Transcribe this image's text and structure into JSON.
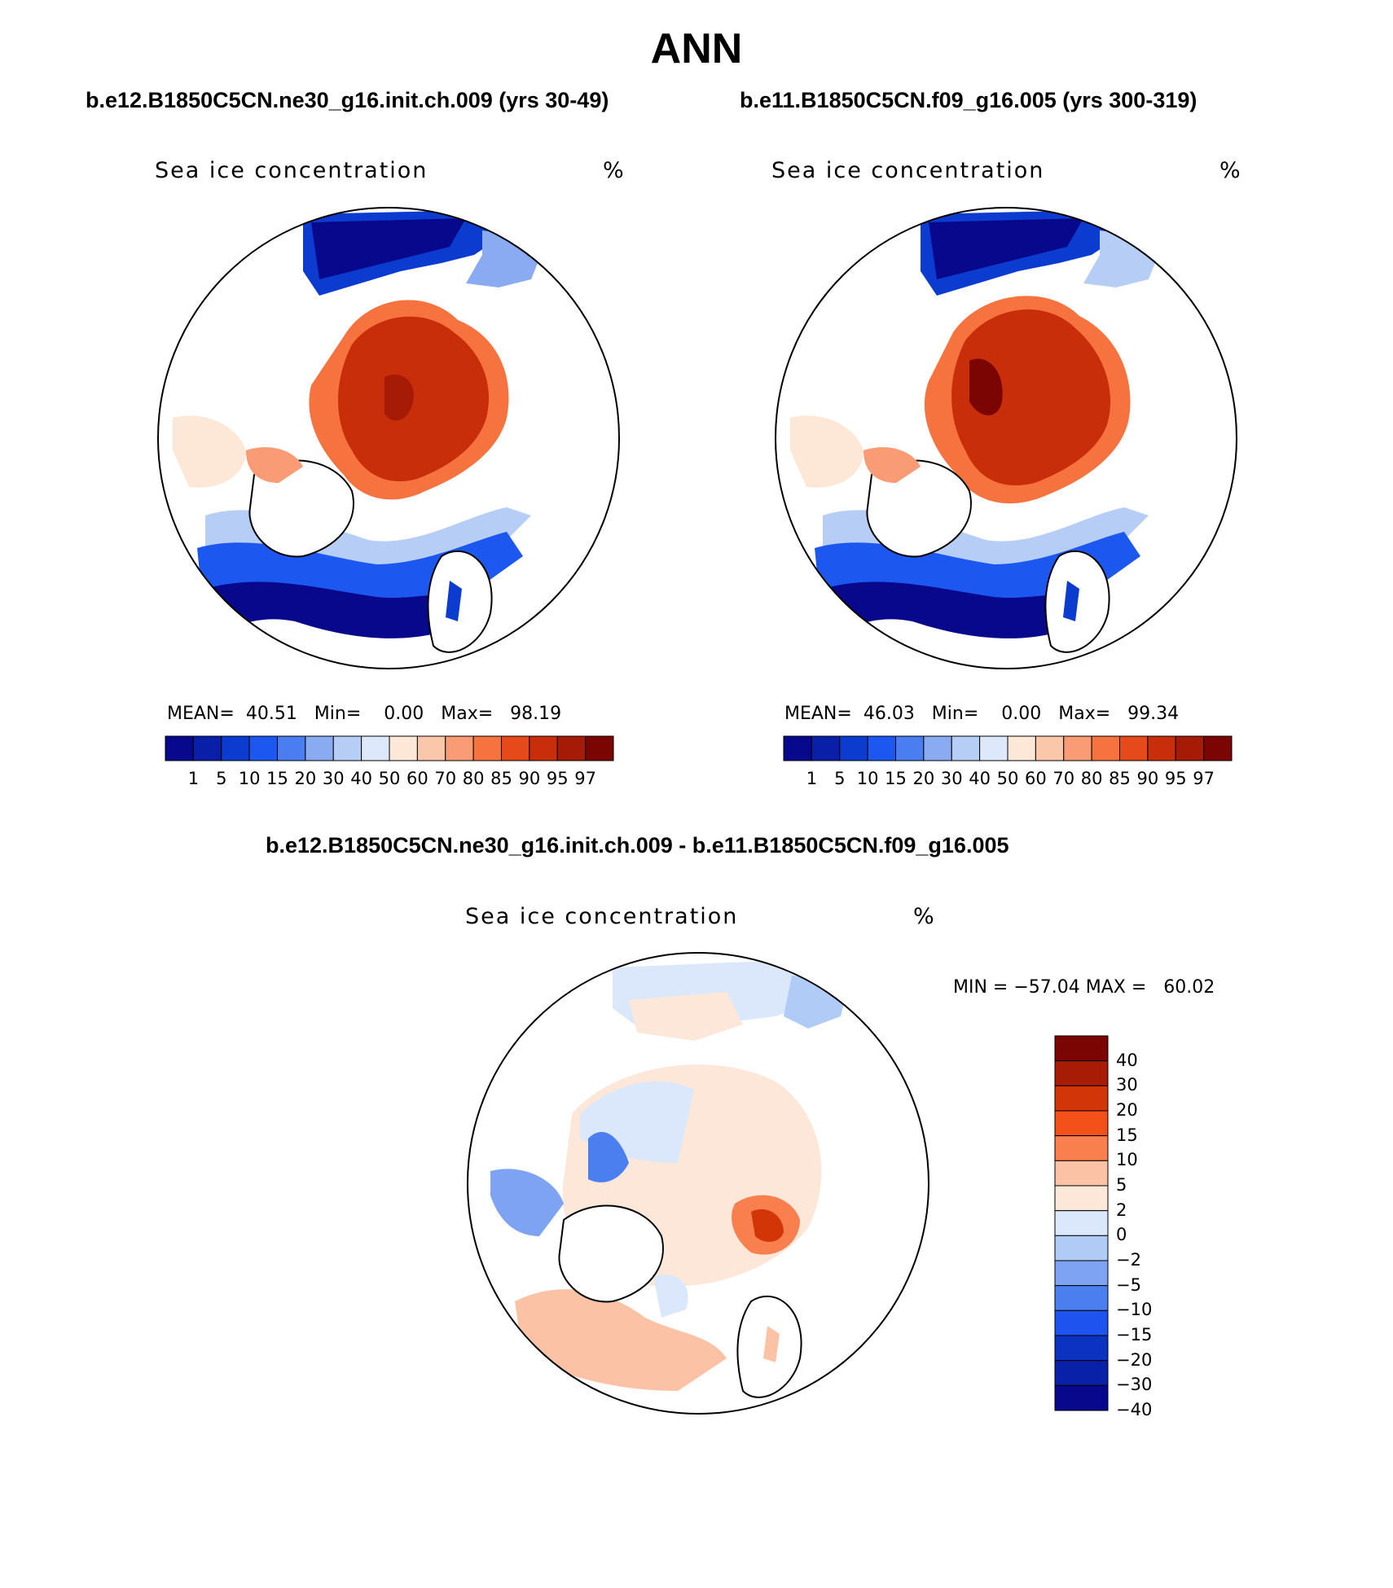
{
  "title": "ANN",
  "panels": [
    {
      "case": "b.e12.B1850C5CN.ne30_g16.init.ch.009 (yrs 30-49)",
      "variable": "Sea ice concentration",
      "units": "%",
      "stats": {
        "mean_label": "MEAN=",
        "mean": "40.51",
        "min_label": "Min=",
        "min": "0.00",
        "max_label": "Max=",
        "max": "98.19"
      }
    },
    {
      "case": "b.e11.B1850C5CN.f09_g16.005 (yrs 300-319)",
      "variable": "Sea ice concentration",
      "units": "%",
      "stats": {
        "mean_label": "MEAN=",
        "mean": "46.03",
        "min_label": "Min=",
        "min": "0.00",
        "max_label": "Max=",
        "max": "99.34"
      }
    }
  ],
  "diff_panel": {
    "title": "b.e12.B1850C5CN.ne30_g16.init.ch.009 - b.e11.B1850C5CN.f09_g16.005",
    "variable": "Sea ice concentration",
    "units": "%",
    "minmax": "MIN = −57.04 MAX =   60.02"
  },
  "colorbar_levels": [
    "1",
    "5",
    "10",
    "15",
    "20",
    "30",
    "40",
    "50",
    "60",
    "70",
    "80",
    "85",
    "90",
    "95",
    "97"
  ],
  "colorbar_colors": [
    "#08088c",
    "#0a1fa8",
    "#0b3ccf",
    "#1c58f0",
    "#4a7ef0",
    "#8aaaf2",
    "#b6cdf6",
    "#dde9fb",
    "#fde8d8",
    "#fbc7aa",
    "#f99b74",
    "#f6733f",
    "#e74a1a",
    "#c82e0a",
    "#a51b06",
    "#7a0503"
  ],
  "diff_levels": [
    "40",
    "30",
    "20",
    "15",
    "10",
    "5",
    "2",
    "0",
    "−2",
    "−5",
    "−10",
    "−15",
    "−20",
    "−30",
    "−40"
  ],
  "diff_colors": [
    "#7a0503",
    "#a81c06",
    "#d23608",
    "#f4501a",
    "#f97f4f",
    "#fbc2a6",
    "#fde7d9",
    "#dbe8fb",
    "#b1cbf7",
    "#7ea3f3",
    "#4b7ff0",
    "#1f53f0",
    "#0b32c0",
    "#0920a8",
    "#07088c"
  ]
}
